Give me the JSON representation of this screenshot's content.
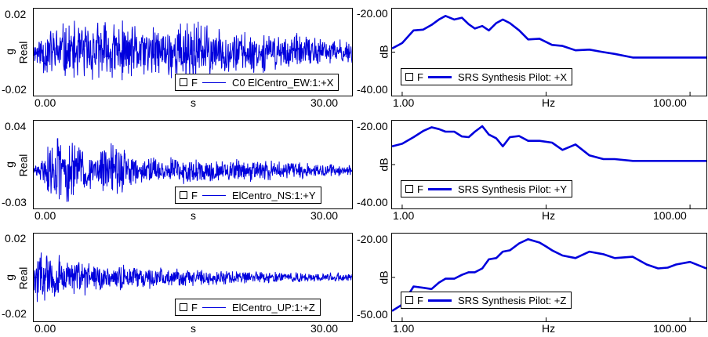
{
  "colors": {
    "trace": "#0000dd",
    "axis": "#000000",
    "background": "#ffffff"
  },
  "time_panels": [
    {
      "yticks": [
        "0.02",
        "-0.02"
      ],
      "yunit": "g",
      "ykind": "Real",
      "xticks": [
        "0.00",
        "30.00"
      ],
      "xlabel": "s",
      "legend": {
        "checkbox": "F",
        "label": "C0 ElCentro_EW:1:+X"
      }
    },
    {
      "yticks": [
        "0.04",
        "-0.03"
      ],
      "yunit": "g",
      "ykind": "Real",
      "xticks": [
        "0.00",
        "30.00"
      ],
      "xlabel": "s",
      "legend": {
        "checkbox": "F",
        "label": "ElCentro_NS:1:+Y"
      }
    },
    {
      "yticks": [
        "0.02",
        "-0.02"
      ],
      "yunit": "g",
      "ykind": "Real",
      "xticks": [
        "0.00",
        "30.00"
      ],
      "xlabel": "s",
      "legend": {
        "checkbox": "F",
        "label": "ElCentro_UP:1:+Z"
      }
    }
  ],
  "srs_panels": [
    {
      "yticks": [
        "-20.00",
        "-40.00"
      ],
      "yunit": "dB",
      "xticks": [
        "1.00",
        "100.00"
      ],
      "xlabel": "Hz",
      "legend": {
        "checkbox": "F",
        "label": "SRS Synthesis Pilot: +X"
      }
    },
    {
      "yticks": [
        "-20.00",
        "-40.00"
      ],
      "yunit": "dB",
      "xticks": [
        "1.00",
        "100.00"
      ],
      "xlabel": "Hz",
      "legend": {
        "checkbox": "F",
        "label": "SRS Synthesis Pilot: +Y"
      }
    },
    {
      "yticks": [
        "-20.00",
        "-50.00"
      ],
      "yunit": "dB",
      "xticks": [
        "1.00",
        "100.00"
      ],
      "xlabel": "Hz",
      "legend": {
        "checkbox": "F",
        "label": "SRS Synthesis Pilot: +Z"
      }
    }
  ],
  "chart_data": [
    {
      "type": "line",
      "xlabel": "s",
      "ylabel": "g Real",
      "xlim": [
        0,
        32
      ],
      "ylim": [
        -0.024,
        0.024
      ],
      "series": [
        {
          "name": "C0 ElCentro_EW:1:+X",
          "envelope": [
            [
              0,
              0.006
            ],
            [
              1,
              0.015
            ],
            [
              3,
              0.018
            ],
            [
              5,
              0.018
            ],
            [
              8,
              0.02
            ],
            [
              10,
              0.016
            ],
            [
              13,
              0.015
            ],
            [
              16,
              0.022
            ],
            [
              18,
              0.014
            ],
            [
              22,
              0.012
            ],
            [
              26,
              0.011
            ],
            [
              30,
              0.008
            ],
            [
              32,
              0.007
            ]
          ]
        }
      ]
    },
    {
      "type": "line",
      "xlabel": "Hz",
      "ylabel": "dB",
      "xscale": "log",
      "xlim": [
        0.85,
        130
      ],
      "ylim": [
        -42,
        -18
      ],
      "series": [
        {
          "name": "SRS Synthesis Pilot: +X",
          "x": [
            0.85,
            1.0,
            1.2,
            1.4,
            1.6,
            1.8,
            2.0,
            2.3,
            2.6,
            2.9,
            3.2,
            3.6,
            4.0,
            4.5,
            5.0,
            5.6,
            6.5,
            7.5,
            9,
            11,
            13,
            16,
            20,
            25,
            30,
            40,
            50,
            70,
            100,
            130
          ],
          "y": [
            -29,
            -27.5,
            -24,
            -23.8,
            -22.5,
            -21,
            -20,
            -21,
            -20.5,
            -22.3,
            -23.5,
            -22.8,
            -24,
            -22,
            -21,
            -22,
            -24,
            -26.5,
            -26.3,
            -28,
            -28.3,
            -29.5,
            -29.3,
            -30,
            -30.5,
            -31.5,
            -31.5,
            -31.5,
            -31.5,
            -31.5
          ]
        }
      ]
    },
    {
      "type": "line",
      "xlabel": "s",
      "ylabel": "g Real",
      "xlim": [
        0,
        32
      ],
      "ylim": [
        -0.032,
        0.042
      ],
      "series": [
        {
          "name": "ElCentro_NS:1:+Y",
          "envelope": [
            [
              0,
              0.004
            ],
            [
              1,
              0.012
            ],
            [
              2,
              0.04
            ],
            [
              3,
              0.03
            ],
            [
              5,
              0.022
            ],
            [
              6,
              0.015
            ],
            [
              8,
              0.03
            ],
            [
              10,
              0.015
            ],
            [
              13,
              0.012
            ],
            [
              16,
              0.012
            ],
            [
              20,
              0.01
            ],
            [
              25,
              0.009
            ],
            [
              30,
              0.006
            ],
            [
              32,
              0.005
            ]
          ]
        }
      ]
    },
    {
      "type": "line",
      "xlabel": "Hz",
      "ylabel": "dB",
      "xscale": "log",
      "xlim": [
        0.85,
        130
      ],
      "ylim": [
        -42,
        -18
      ],
      "series": [
        {
          "name": "SRS Synthesis Pilot: +Y",
          "x": [
            0.85,
            1.0,
            1.2,
            1.4,
            1.6,
            1.8,
            2.0,
            2.3,
            2.6,
            2.9,
            3.2,
            3.6,
            4.0,
            4.5,
            5.0,
            5.6,
            6.5,
            7.5,
            9,
            11,
            13,
            16,
            20,
            25,
            30,
            40,
            50,
            70,
            100,
            130
          ],
          "y": [
            -25,
            -24.3,
            -22.5,
            -20.8,
            -19.8,
            -20.3,
            -21,
            -21,
            -22.3,
            -22.5,
            -21,
            -19.5,
            -21.8,
            -22.8,
            -25,
            -22.5,
            -22.2,
            -23.5,
            -23.5,
            -24,
            -26,
            -24.5,
            -27.5,
            -28.5,
            -28.5,
            -29,
            -29,
            -29,
            -29,
            -29
          ]
        }
      ]
    },
    {
      "type": "line",
      "xlabel": "s",
      "ylabel": "g Real",
      "xlim": [
        0,
        32
      ],
      "ylim": [
        -0.024,
        0.024
      ],
      "series": [
        {
          "name": "ElCentro_UP:1:+Z",
          "envelope": [
            [
              0,
              0.01
            ],
            [
              1,
              0.02
            ],
            [
              2,
              0.016
            ],
            [
              4,
              0.012
            ],
            [
              6,
              0.01
            ],
            [
              8,
              0.008
            ],
            [
              10,
              0.007
            ],
            [
              13,
              0.006
            ],
            [
              16,
              0.005
            ],
            [
              20,
              0.004
            ],
            [
              25,
              0.003
            ],
            [
              30,
              0.003
            ],
            [
              32,
              0.003
            ]
          ]
        }
      ]
    },
    {
      "type": "line",
      "xlabel": "Hz",
      "ylabel": "dB",
      "xscale": "log",
      "xlim": [
        0.85,
        130
      ],
      "ylim": [
        -52,
        -18
      ],
      "series": [
        {
          "name": "SRS Synthesis Pilot: +Z",
          "x": [
            0.85,
            1.0,
            1.2,
            1.4,
            1.6,
            1.8,
            2.0,
            2.3,
            2.6,
            2.9,
            3.2,
            3.6,
            4.0,
            4.5,
            5.0,
            5.6,
            6.5,
            7.5,
            9,
            10,
            11,
            13,
            16,
            20,
            25,
            30,
            40,
            50,
            60,
            70,
            80,
            100,
            130
          ],
          "y": [
            -48,
            -45.5,
            -38.5,
            -39,
            -39.5,
            -37,
            -35.5,
            -35.5,
            -34,
            -33,
            -33,
            -31.5,
            -28,
            -27.5,
            -25,
            -24.5,
            -21.8,
            -20.2,
            -21.5,
            -23,
            -24.5,
            -26.5,
            -27.5,
            -25,
            -26,
            -27.5,
            -27,
            -30,
            -31.5,
            -31.2,
            -30,
            -29,
            -31.5
          ]
        }
      ]
    }
  ]
}
